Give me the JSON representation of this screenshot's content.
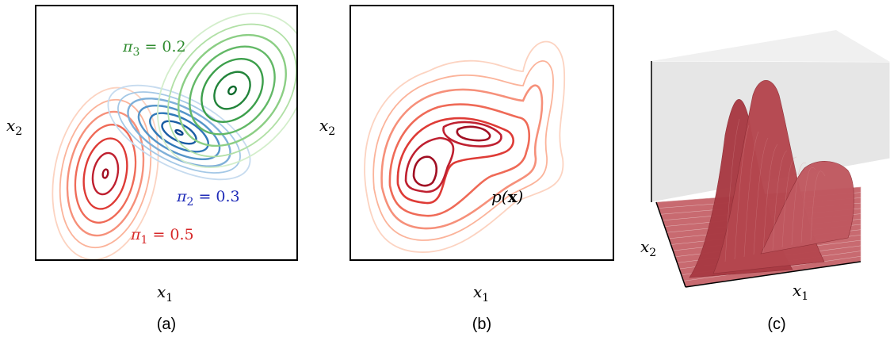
{
  "panels": [
    {
      "caption": "(a)",
      "x_label": {
        "var": "x",
        "sub": "1"
      },
      "y_label": {
        "var": "x",
        "sub": "2"
      },
      "components": [
        {
          "label": {
            "var": "π",
            "sub": "1",
            "rest": " = 0.5"
          },
          "mixing_coefficient": 0.5,
          "color_scheme": "red",
          "text_color": "#d62728"
        },
        {
          "label": {
            "var": "π",
            "sub": "2",
            "rest": " = 0.3"
          },
          "mixing_coefficient": 0.3,
          "color_scheme": "blue",
          "text_color": "#1f2bb8"
        },
        {
          "label": {
            "var": "π",
            "sub": "3",
            "rest": " = 0.2"
          },
          "mixing_coefficient": 0.2,
          "color_scheme": "green",
          "text_color": "#2e8b2e"
        }
      ]
    },
    {
      "caption": "(b)",
      "x_label": {
        "var": "x",
        "sub": "1"
      },
      "y_label": {
        "var": "x",
        "sub": "2"
      },
      "density_label": "p(x)",
      "density_label_parts": {
        "fn": "p(",
        "arg": "x",
        "close": ")"
      },
      "color_scheme": "red"
    },
    {
      "caption": "(c)",
      "x_label": {
        "var": "x",
        "sub": "1"
      },
      "y_label": {
        "var": "x",
        "sub": "2"
      },
      "surface_color": "#b5474f",
      "floor_color": "#e8e8e8"
    }
  ],
  "colors": {
    "red": [
      "#fcd3c1",
      "#fbb39a",
      "#f6907a",
      "#ef6a57",
      "#de3b36",
      "#bf2030",
      "#a10f23"
    ],
    "blue": [
      "#c6dbef",
      "#a4c8e6",
      "#7fb0d9",
      "#5595c9",
      "#3179b8",
      "#1a5da4",
      "#0c468c"
    ],
    "green": [
      "#d3eecb",
      "#b1e0a6",
      "#8bce84",
      "#62b866",
      "#3c9f4b",
      "#22843a",
      "#0d6a2c"
    ]
  }
}
